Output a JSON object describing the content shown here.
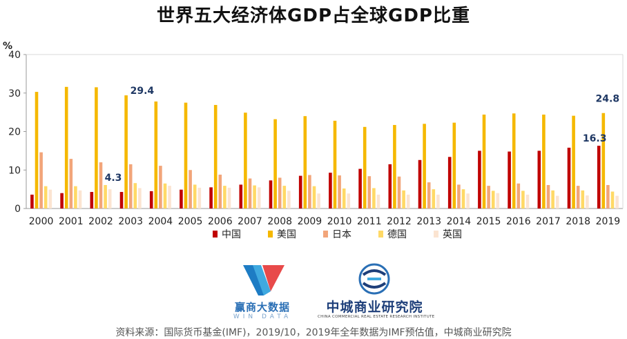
{
  "title": "世界五大经济体GDP占全球GDP比重",
  "source": "资料来源：国际货币基金(IMF)，2019/10，2019年全年数据为IMF预估值，中城商业研究院",
  "logos": {
    "wind_cn": "赢商大数据",
    "wind_en": "WIN DATA",
    "cc_cn": "中城商业研究院",
    "cc_en": "CHINA COMMERCIAL REAL ESTATE RESEARCH INSTITUTE"
  },
  "colors": {
    "china": "#c00000",
    "usa": "#f5b800",
    "japan": "#f2a57a",
    "germany": "#ffd966",
    "uk": "#fbe4d1",
    "axis": "#999999",
    "grid": "#d9d9d9",
    "annotation": "#1f3864"
  },
  "chart_data": {
    "type": "bar",
    "ylabel": "%",
    "ylim": [
      0,
      40
    ],
    "yticks": [
      0,
      10,
      20,
      30,
      40
    ],
    "grid": false,
    "legend": "bottom",
    "categories": [
      "2000",
      "2001",
      "2002",
      "2003",
      "2004",
      "2005",
      "2006",
      "2007",
      "2008",
      "2009",
      "2010",
      "2011",
      "2012",
      "2013",
      "2014",
      "2015",
      "2016",
      "2017",
      "2018",
      "2019"
    ],
    "series": [
      {
        "name": "中国",
        "key": "china",
        "values": [
          3.6,
          4.0,
          4.3,
          4.3,
          4.5,
          4.9,
          5.5,
          6.2,
          7.3,
          8.5,
          9.3,
          10.3,
          11.5,
          12.6,
          13.4,
          15.0,
          14.8,
          15.0,
          15.8,
          16.3
        ]
      },
      {
        "name": "美国",
        "key": "usa",
        "values": [
          30.3,
          31.6,
          31.5,
          29.4,
          27.8,
          27.5,
          26.9,
          24.9,
          23.2,
          24.0,
          22.8,
          21.2,
          21.7,
          22.0,
          22.3,
          24.4,
          24.7,
          24.4,
          24.1,
          24.8
        ]
      },
      {
        "name": "日本",
        "key": "japan",
        "values": [
          14.6,
          12.9,
          12.0,
          11.5,
          11.1,
          10.0,
          8.8,
          7.8,
          8.0,
          8.7,
          8.6,
          8.4,
          8.3,
          6.8,
          6.2,
          5.9,
          6.5,
          6.1,
          5.9,
          6.1
        ]
      },
      {
        "name": "德国",
        "key": "germany",
        "values": [
          5.8,
          5.8,
          6.1,
          6.6,
          6.5,
          6.2,
          5.9,
          6.0,
          5.9,
          5.8,
          5.2,
          5.3,
          4.7,
          5.0,
          5.0,
          4.6,
          4.6,
          4.7,
          4.7,
          4.4
        ]
      },
      {
        "name": "英国",
        "key": "uk",
        "values": [
          4.9,
          4.7,
          5.0,
          5.3,
          5.9,
          5.4,
          5.4,
          5.5,
          4.6,
          3.9,
          3.9,
          3.6,
          3.6,
          3.6,
          3.9,
          4.0,
          3.6,
          3.3,
          3.4,
          3.3
        ]
      }
    ],
    "annotations": [
      {
        "text": "29.4",
        "series": "usa",
        "category": "2003"
      },
      {
        "text": "4.3",
        "series": "china",
        "category": "2003"
      },
      {
        "text": "24.8",
        "series": "usa",
        "category": "2019"
      },
      {
        "text": "16.3",
        "series": "china",
        "category": "2019"
      }
    ]
  }
}
